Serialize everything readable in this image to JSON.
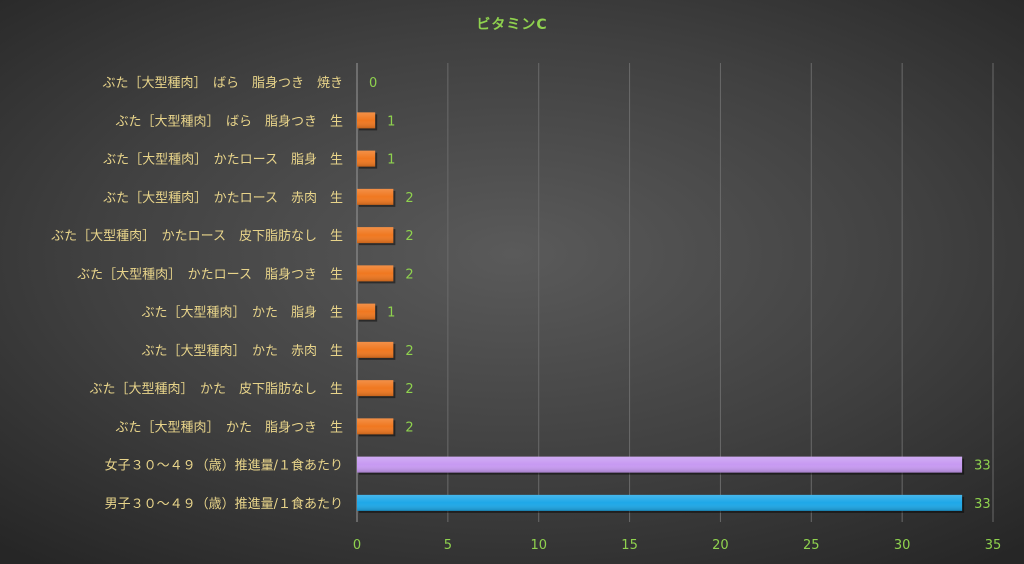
{
  "chart_data": {
    "type": "bar",
    "orientation": "horizontal",
    "title": "ビタミンC",
    "categories": [
      "ぶた［大型種肉］　ばら　脂身つき　焼き",
      "ぶた［大型種肉］　ばら　脂身つき　生",
      "ぶた［大型種肉］　かたロース　脂身　生",
      "ぶた［大型種肉］　かたロース　赤肉　生",
      "ぶた［大型種肉］　かたロース　皮下脂肪なし　生",
      "ぶた［大型種肉］　かたロース　脂身つき　生",
      "ぶた［大型種肉］　かた　脂身　生",
      "ぶた［大型種肉］　かた　赤肉　生",
      "ぶた［大型種肉］　かた　皮下脂肪なし　生",
      "ぶた［大型種肉］　かた　脂身つき　生",
      "女子３０～４９（歳）推進量/１食あたり",
      "男子３０～４９（歳）推進量/１食あたり"
    ],
    "values": [
      0,
      1,
      1,
      2,
      2,
      2,
      1,
      2,
      2,
      2,
      33.3,
      33.3
    ],
    "data_labels": [
      "0",
      "1",
      "1",
      "2",
      "2",
      "2",
      "1",
      "2",
      "2",
      "2",
      "33",
      "33"
    ],
    "bar_colors": [
      "#f07820",
      "#f07820",
      "#f07820",
      "#f07820",
      "#f07820",
      "#f07820",
      "#f07820",
      "#f07820",
      "#f07820",
      "#f07820",
      "#c79af2",
      "#1ea8e8"
    ],
    "xlim": [
      0,
      35
    ],
    "x_ticks": [
      "0",
      "5",
      "10",
      "15",
      "20",
      "25",
      "30",
      "35"
    ],
    "grid": true,
    "legend": "none"
  },
  "colors": {
    "title": "#8fd24e",
    "tick_label": "#8fd24e",
    "category_label": "#e8d48a",
    "data_label": "#8fd24e",
    "grid": "#6a6a6a",
    "axis": "#9a9a9a"
  }
}
